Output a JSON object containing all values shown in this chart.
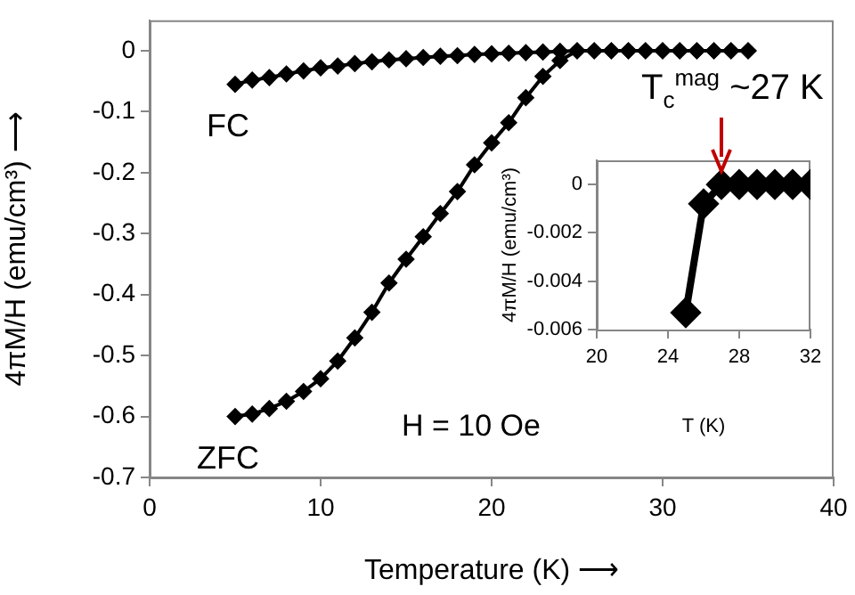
{
  "chart_data": [
    {
      "type": "line",
      "xlabel": "Temperature (K) ⟶",
      "ylabel": "4πM/H (emu/cm³) ⟶",
      "xlim": [
        0,
        40
      ],
      "xticks": [
        0,
        10,
        20,
        30,
        40
      ],
      "ylim": [
        -0.7,
        0.05
      ],
      "yticks": [
        -0.7,
        -0.6,
        -0.5,
        -0.4,
        -0.3,
        -0.2,
        -0.1,
        0
      ],
      "marker": "diamond",
      "legend": false,
      "annotations": [
        "H = 10 Oe"
      ],
      "x": [
        5,
        6,
        7,
        8,
        9,
        10,
        11,
        12,
        13,
        14,
        15,
        16,
        17,
        18,
        19,
        20,
        21,
        22,
        23,
        24,
        25,
        26,
        27,
        28,
        29,
        30,
        31,
        32,
        33,
        34,
        35
      ],
      "series": [
        {
          "name": "FC",
          "color": "#000000",
          "values": [
            -0.055,
            -0.048,
            -0.044,
            -0.038,
            -0.033,
            -0.028,
            -0.025,
            -0.021,
            -0.018,
            -0.015,
            -0.013,
            -0.011,
            -0.009,
            -0.008,
            -0.006,
            -0.005,
            -0.004,
            -0.003,
            -0.002,
            -0.001,
            0,
            0,
            0,
            0,
            0,
            0,
            0,
            0,
            0,
            0,
            0
          ]
        },
        {
          "name": "ZFC",
          "color": "#000000",
          "values": [
            -0.6,
            -0.596,
            -0.587,
            -0.575,
            -0.559,
            -0.538,
            -0.509,
            -0.471,
            -0.429,
            -0.381,
            -0.342,
            -0.305,
            -0.267,
            -0.231,
            -0.187,
            -0.151,
            -0.118,
            -0.077,
            -0.042,
            -0.016,
            0,
            0,
            0,
            0,
            0,
            0,
            0,
            0,
            0,
            0,
            0
          ]
        }
      ]
    },
    {
      "type": "line",
      "xlabel": "T (K)",
      "ylabel": "4πM/H (emu/cm³)",
      "xlim": [
        20,
        32
      ],
      "xticks": [
        20,
        24,
        28,
        32
      ],
      "ylim": [
        -0.006,
        0.001
      ],
      "yticks": [
        -0.006,
        -0.004,
        -0.002,
        0
      ],
      "marker": "diamond",
      "legend": false,
      "annotations": [
        {
          "text": "T$_{c}$$^{mag}$ ~27 K",
          "x": 27,
          "y": 0
        }
      ],
      "x": [
        25,
        26,
        27,
        28,
        29,
        30,
        31,
        32
      ],
      "series": [
        {
          "color": "#000000",
          "values": [
            -0.0053,
            -0.0008,
            0,
            0,
            0,
            0,
            0,
            0
          ]
        }
      ]
    }
  ]
}
